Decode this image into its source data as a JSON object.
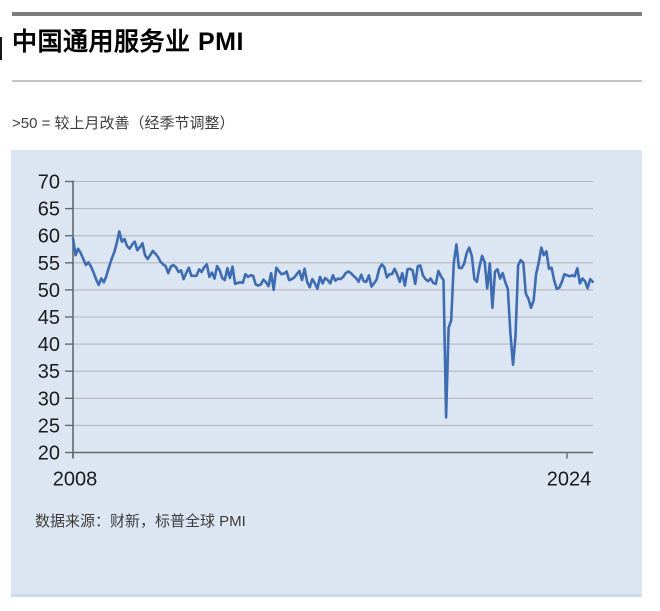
{
  "header": {
    "title": "中国通用服务业 PMI",
    "subtitle": ">50 =  较上月改善（经季节调整）"
  },
  "footer": {
    "source": "数据来源：财新，标普全球 PMI"
  },
  "chart_data": {
    "type": "line",
    "title": "中国通用服务业 PMI",
    "subtitle": ">50 = 较上月改善（经季节调整）",
    "source": "数据来源：财新，标普全球 PMI",
    "grid": true,
    "legend": false,
    "ylim": [
      20,
      70
    ],
    "y_ticks": [
      70,
      65,
      60,
      55,
      50,
      45,
      40,
      35,
      30,
      25,
      20
    ],
    "x_ticks": [
      {
        "label": "2008",
        "year": 2008
      },
      {
        "label": "2024",
        "year": 2024
      }
    ],
    "x_range": {
      "start": "2008-01",
      "end": "2024-11"
    },
    "reference_level": 50,
    "colors": {
      "line": "#3e6cb2",
      "plot_background": "#dce6f2",
      "gridline": "#b4b8bf",
      "axis": "#63676d",
      "tick_label": "#1c1c1c"
    },
    "series": [
      {
        "name": "中国通用服务业 PMI",
        "frequency": "monthly",
        "start": "2008-01",
        "values_by_year": [
          [
            59.5,
            56.4,
            57.6,
            56.8,
            55.7,
            54.6,
            55.1,
            54.3,
            53.2,
            51.9,
            50.9,
            52.1
          ],
          [
            51.4,
            52.6,
            54.2,
            55.7,
            56.9,
            58.6,
            60.8,
            58.9,
            59.4,
            58.1,
            57.6,
            58.4
          ],
          [
            58.9,
            57.3,
            57.9,
            58.6,
            56.4,
            55.7,
            56.4,
            57.2,
            56.7,
            56.1,
            55.2,
            54.7
          ],
          [
            54.4,
            53.1,
            54.3,
            54.6,
            54.2,
            53.3,
            53.6,
            52.0,
            53.1,
            54.1,
            52.6,
            52.6
          ],
          [
            52.6,
            53.8,
            53.3,
            54.2,
            54.7,
            52.4,
            53.2,
            52.1,
            54.4,
            53.6,
            52.2,
            51.8
          ],
          [
            54.0,
            52.2,
            54.3,
            51.1,
            51.3,
            51.4,
            51.3,
            52.9,
            52.4,
            52.7,
            52.6,
            51.0
          ],
          [
            50.8,
            51.0,
            51.9,
            51.4,
            50.7,
            53.1,
            50.0,
            54.1,
            53.5,
            52.9,
            53.0,
            53.4
          ],
          [
            51.8,
            52.0,
            52.3,
            52.9,
            53.5,
            51.8,
            53.9,
            51.5,
            50.5,
            52.0,
            51.2,
            50.2
          ],
          [
            52.4,
            51.2,
            52.2,
            51.8,
            51.2,
            52.7,
            51.7,
            52.1,
            52.0,
            52.4,
            53.1,
            53.4
          ],
          [
            53.1,
            52.6,
            52.2,
            51.5,
            52.8,
            51.6,
            51.5,
            52.7,
            50.6,
            51.2,
            51.9,
            53.9
          ],
          [
            54.7,
            54.2,
            52.3,
            52.9,
            52.9,
            53.9,
            52.8,
            51.5,
            53.1,
            50.8,
            53.8,
            53.9
          ],
          [
            53.6,
            51.1,
            54.4,
            54.5,
            52.7,
            52.0,
            51.6,
            52.1,
            51.3,
            51.1,
            53.5,
            52.5
          ],
          [
            51.8,
            26.5,
            43.0,
            44.4,
            55.0,
            58.4,
            54.1,
            54.0,
            54.8,
            56.8,
            57.8,
            56.3
          ],
          [
            52.0,
            51.5,
            54.3,
            56.3,
            55.1,
            50.3,
            54.9,
            46.7,
            53.4,
            53.8,
            52.1,
            53.1
          ],
          [
            51.4,
            50.2,
            42.0,
            36.2,
            41.4,
            54.5,
            55.5,
            55.0,
            49.3,
            48.4,
            46.7,
            48.0
          ],
          [
            52.9,
            55.0,
            57.8,
            56.4,
            57.1,
            53.9,
            54.1,
            51.8,
            50.2,
            50.4,
            51.5,
            52.9
          ],
          [
            52.7,
            52.5,
            52.7,
            52.5,
            54.0,
            51.2,
            52.1,
            51.6,
            50.3,
            52.0,
            51.5
          ]
        ]
      }
    ]
  }
}
